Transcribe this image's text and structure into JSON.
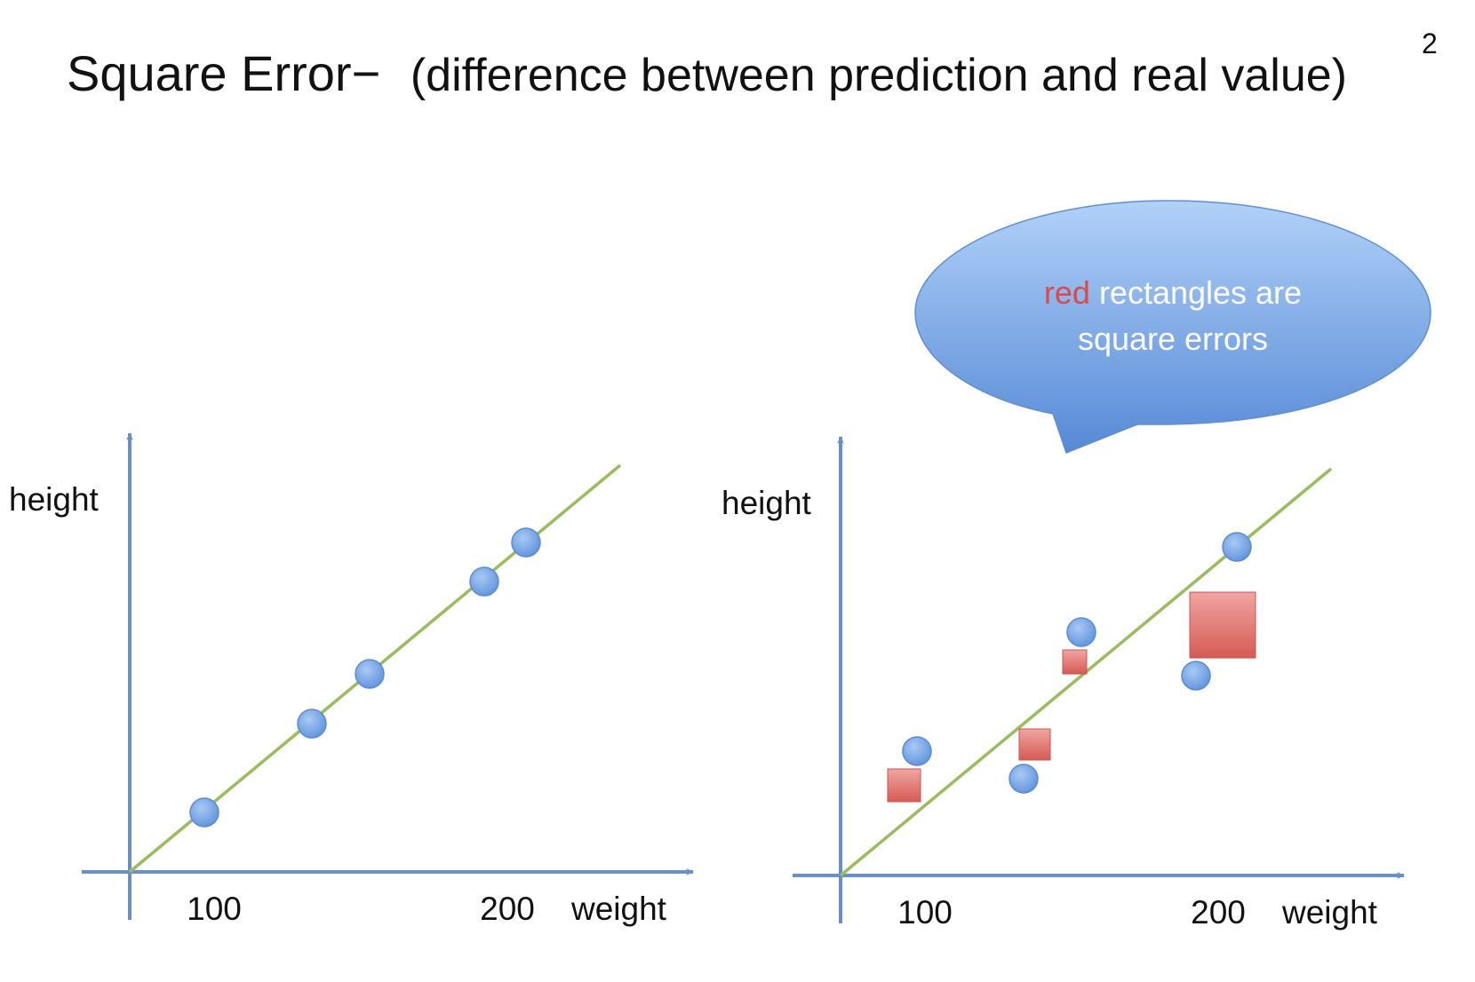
{
  "title": {
    "main": "Square Error−",
    "paren": "(difference between prediction and real value)",
    "exponent": "2"
  },
  "callout": {
    "highlight": "red",
    "line1_rest": " rectangles are",
    "line2": "square errors"
  },
  "colors": {
    "axis": "#6a8fc4",
    "fit_line": "#9abb5e",
    "point": "#6a9ee3",
    "square": "#e06b67",
    "callout_top": "#a9ccf6",
    "callout_bottom": "#5a8fda",
    "callout_highlight": "#d94a4a"
  },
  "plots": [
    {
      "ylabel": "height",
      "xlabel": "weight",
      "tick_labels": [
        "100",
        "200"
      ]
    },
    {
      "ylabel": "height",
      "xlabel": "weight",
      "tick_labels": [
        "100",
        "200"
      ]
    }
  ]
}
